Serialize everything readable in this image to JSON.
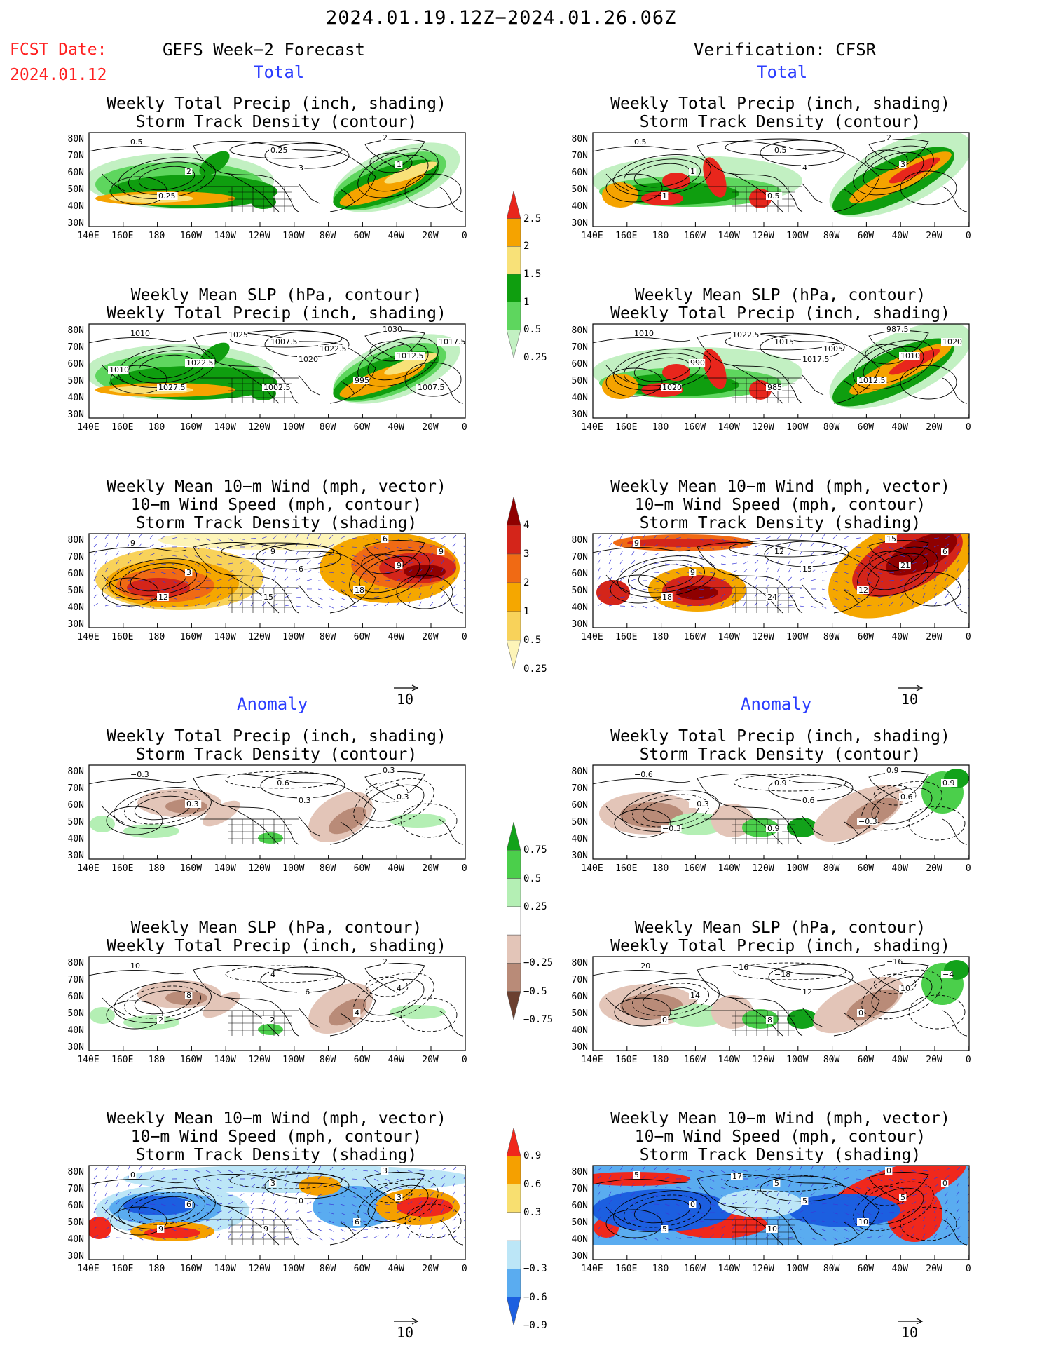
{
  "header": {
    "date_range": "2024.01.19.12Z−2024.01.26.06Z",
    "fcst_label": "FCST Date:",
    "fcst_date": "2024.01.12",
    "left_heading": "GEFS Week−2 Forecast",
    "right_heading": "Verification: CFSR",
    "total_label": "Total",
    "anomaly_label": "Anomaly"
  },
  "panel_titles": {
    "precip": [
      "Weekly Total Precip (inch, shading)",
      "Storm Track Density (contour)"
    ],
    "slp": [
      "Weekly Mean SLP (hPa, contour)",
      "Weekly Total Precip (inch, shading)"
    ],
    "wind": [
      "Weekly Mean 10−m Wind (mph, vector)",
      "10−m Wind Speed (mph, contour)",
      "Storm Track Density (shading)"
    ]
  },
  "axes": {
    "lat_labels": [
      "80N",
      "70N",
      "60N",
      "50N",
      "40N",
      "30N"
    ],
    "lon_labels": [
      "140E",
      "160E",
      "180",
      "160W",
      "140W",
      "120W",
      "100W",
      "80W",
      "60W",
      "40W",
      "20W",
      "0"
    ]
  },
  "vector_reference": "10",
  "colorbars": {
    "total_precip": {
      "ticks": [
        "2.5",
        "2",
        "1.5",
        "1",
        "0.5",
        "0.25"
      ],
      "colors": [
        "#e8261c",
        "#f5a300",
        "#f8e178",
        "#0f9e0f",
        "#5ed65e",
        "#c2f0c2"
      ]
    },
    "total_density": {
      "ticks": [
        "4",
        "3",
        "2",
        "1",
        "0.5",
        "0.25"
      ],
      "colors": [
        "#8f0000",
        "#d4251a",
        "#f06a14",
        "#f5a700",
        "#f8d25a",
        "#fdf4b8"
      ]
    },
    "anom_precip": {
      "ticks": [
        "0.75",
        "0.5",
        "0.25",
        "−0.25",
        "−0.5",
        "−0.75"
      ],
      "colors": [
        "#12a21a",
        "#4bcf4b",
        "#b4efb4",
        "#ffffff",
        "#e3c5b8",
        "#b98b78",
        "#6b4030"
      ]
    },
    "anom_density": {
      "ticks": [
        "0.9",
        "0.6",
        "0.3",
        "−0.3",
        "−0.6",
        "−0.9"
      ],
      "colors": [
        "#f0281c",
        "#f5a000",
        "#f8df70",
        "#ffffff",
        "#bce6f7",
        "#5aacf0",
        "#1c5fe0"
      ]
    }
  },
  "contour_labels": {
    "fcst_total_precip": [
      "0.5",
      "0.25",
      "2",
      "2",
      "3",
      "1",
      "0.25"
    ],
    "verif_total_precip": [
      "0.5",
      "0.5",
      "2",
      "1",
      "4",
      "3",
      "1",
      "0.5"
    ],
    "fcst_total_slp": [
      "1010",
      "1007.5",
      "1030",
      "1022.5",
      "1020",
      "1012.5",
      "1027.5",
      "1002.5",
      "995",
      "1017.5",
      "1025",
      "1022.5",
      "1007.5",
      "1010"
    ],
    "verif_total_slp": [
      "1010",
      "1015",
      "987.5",
      "990",
      "1017.5",
      "1010",
      "1020",
      "985",
      "1012.5",
      "1020",
      "1022.5",
      "1005"
    ],
    "fcst_total_wind": [
      "9",
      "9",
      "6",
      "3",
      "6",
      "9",
      "12",
      "15",
      "18",
      "9"
    ],
    "verif_total_wind": [
      "9",
      "12",
      "15",
      "9",
      "15",
      "21",
      "18",
      "24",
      "12",
      "6"
    ],
    "fcst_anom_precip": [
      "−0.3",
      "−0.6",
      "0.3",
      "0.3",
      "0.3",
      "0.3"
    ],
    "verif_anom_precip": [
      "−0.6",
      "0.9",
      "0.9",
      "−0.3",
      "0.6",
      "0.6",
      "−0.3",
      "0.9",
      "−0.3",
      "0.9"
    ],
    "fcst_anom_slp": [
      "10",
      "4",
      "2",
      "8",
      "−6",
      "4",
      "2",
      "−2",
      "4"
    ],
    "verif_anom_slp": [
      "−20",
      "−18",
      "−16",
      "14",
      "12",
      "10",
      "0",
      "8",
      "0",
      "−4",
      "−16"
    ],
    "fcst_anom_wind": [
      "0",
      "3",
      "3",
      "6",
      "0",
      "3",
      "9",
      "9",
      "6"
    ],
    "verif_anom_wind": [
      "5",
      "5",
      "0",
      "0",
      "5",
      "5",
      "5",
      "10",
      "10",
      "0",
      "17"
    ]
  }
}
